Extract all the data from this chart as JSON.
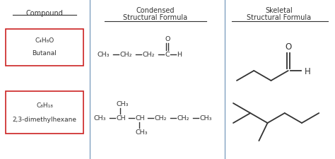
{
  "bg_color": "#ffffff",
  "line_color": "#333333",
  "box_color": "#cc2222",
  "divider_color": "#7799bb",
  "title_compound": "Compound",
  "title_condensed1": "Condensed",
  "title_condensed2": "Structural Formula",
  "title_skeletal1": "Skeletal",
  "title_skeletal2": "Structural Formula",
  "compound1_line1": "C₄H₈O",
  "compound1_line2": "Butanal",
  "compound2_line1": "C₈H₁₈",
  "compound2_line2": "2,3-dimethylhexane",
  "fs_header": 7.0,
  "fs_body": 6.5,
  "fs_mol": 6.8,
  "fs_skeletal_label": 8.5
}
